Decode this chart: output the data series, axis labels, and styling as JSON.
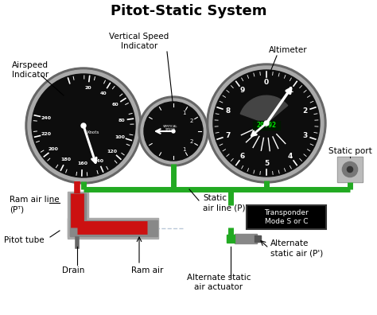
{
  "title": "Pitot-Static System",
  "title_fontsize": 13,
  "title_fontweight": "bold",
  "bg_color": "#ffffff",
  "labels": {
    "airspeed": "Airspeed\nIndicator",
    "vsi": "Vertical Speed\nIndicator",
    "altimeter": "Altimeter",
    "static_port": "Static port",
    "ram_air_line": "Ram air line\n(Pᵀ)",
    "pitot_tube": "Pitot tube",
    "drain": "Drain",
    "ram_air": "Ram air",
    "static_air_line": "Static\nair line (P)",
    "transponder": "Transponder\nMode S or C",
    "alt_static_air": "Alternate\nstatic air (P')",
    "alt_static_actuator": "Alternate static\nair actuator"
  },
  "green_line_color": "#22aa22",
  "red_color": "#cc1111",
  "black": "#000000",
  "white": "#ffffff",
  "gauge_bg": "#0d0d0d",
  "gauge_outer": "#777777",
  "gauge_inner_ring": "#444444"
}
